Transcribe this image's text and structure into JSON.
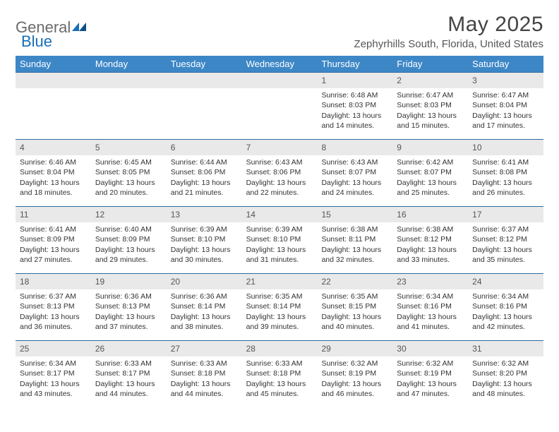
{
  "logo": {
    "general": "General",
    "blue": "Blue"
  },
  "title": "May 2025",
  "location": "Zephyrhills South, Florida, United States",
  "colors": {
    "header_bar": "#3d87c7",
    "row_border": "#2e6aa0",
    "daynum_bg": "#e9e9e9",
    "text": "#333333",
    "logo_gray": "#6a6a6a",
    "logo_blue": "#1a6fb5"
  },
  "dow": [
    "Sunday",
    "Monday",
    "Tuesday",
    "Wednesday",
    "Thursday",
    "Friday",
    "Saturday"
  ],
  "weeks": [
    [
      {
        "n": "",
        "sr": "",
        "ss": "",
        "dl": ""
      },
      {
        "n": "",
        "sr": "",
        "ss": "",
        "dl": ""
      },
      {
        "n": "",
        "sr": "",
        "ss": "",
        "dl": ""
      },
      {
        "n": "",
        "sr": "",
        "ss": "",
        "dl": ""
      },
      {
        "n": "1",
        "sr": "Sunrise: 6:48 AM",
        "ss": "Sunset: 8:03 PM",
        "dl": "Daylight: 13 hours and 14 minutes."
      },
      {
        "n": "2",
        "sr": "Sunrise: 6:47 AM",
        "ss": "Sunset: 8:03 PM",
        "dl": "Daylight: 13 hours and 15 minutes."
      },
      {
        "n": "3",
        "sr": "Sunrise: 6:47 AM",
        "ss": "Sunset: 8:04 PM",
        "dl": "Daylight: 13 hours and 17 minutes."
      }
    ],
    [
      {
        "n": "4",
        "sr": "Sunrise: 6:46 AM",
        "ss": "Sunset: 8:04 PM",
        "dl": "Daylight: 13 hours and 18 minutes."
      },
      {
        "n": "5",
        "sr": "Sunrise: 6:45 AM",
        "ss": "Sunset: 8:05 PM",
        "dl": "Daylight: 13 hours and 20 minutes."
      },
      {
        "n": "6",
        "sr": "Sunrise: 6:44 AM",
        "ss": "Sunset: 8:06 PM",
        "dl": "Daylight: 13 hours and 21 minutes."
      },
      {
        "n": "7",
        "sr": "Sunrise: 6:43 AM",
        "ss": "Sunset: 8:06 PM",
        "dl": "Daylight: 13 hours and 22 minutes."
      },
      {
        "n": "8",
        "sr": "Sunrise: 6:43 AM",
        "ss": "Sunset: 8:07 PM",
        "dl": "Daylight: 13 hours and 24 minutes."
      },
      {
        "n": "9",
        "sr": "Sunrise: 6:42 AM",
        "ss": "Sunset: 8:07 PM",
        "dl": "Daylight: 13 hours and 25 minutes."
      },
      {
        "n": "10",
        "sr": "Sunrise: 6:41 AM",
        "ss": "Sunset: 8:08 PM",
        "dl": "Daylight: 13 hours and 26 minutes."
      }
    ],
    [
      {
        "n": "11",
        "sr": "Sunrise: 6:41 AM",
        "ss": "Sunset: 8:09 PM",
        "dl": "Daylight: 13 hours and 27 minutes."
      },
      {
        "n": "12",
        "sr": "Sunrise: 6:40 AM",
        "ss": "Sunset: 8:09 PM",
        "dl": "Daylight: 13 hours and 29 minutes."
      },
      {
        "n": "13",
        "sr": "Sunrise: 6:39 AM",
        "ss": "Sunset: 8:10 PM",
        "dl": "Daylight: 13 hours and 30 minutes."
      },
      {
        "n": "14",
        "sr": "Sunrise: 6:39 AM",
        "ss": "Sunset: 8:10 PM",
        "dl": "Daylight: 13 hours and 31 minutes."
      },
      {
        "n": "15",
        "sr": "Sunrise: 6:38 AM",
        "ss": "Sunset: 8:11 PM",
        "dl": "Daylight: 13 hours and 32 minutes."
      },
      {
        "n": "16",
        "sr": "Sunrise: 6:38 AM",
        "ss": "Sunset: 8:12 PM",
        "dl": "Daylight: 13 hours and 33 minutes."
      },
      {
        "n": "17",
        "sr": "Sunrise: 6:37 AM",
        "ss": "Sunset: 8:12 PM",
        "dl": "Daylight: 13 hours and 35 minutes."
      }
    ],
    [
      {
        "n": "18",
        "sr": "Sunrise: 6:37 AM",
        "ss": "Sunset: 8:13 PM",
        "dl": "Daylight: 13 hours and 36 minutes."
      },
      {
        "n": "19",
        "sr": "Sunrise: 6:36 AM",
        "ss": "Sunset: 8:13 PM",
        "dl": "Daylight: 13 hours and 37 minutes."
      },
      {
        "n": "20",
        "sr": "Sunrise: 6:36 AM",
        "ss": "Sunset: 8:14 PM",
        "dl": "Daylight: 13 hours and 38 minutes."
      },
      {
        "n": "21",
        "sr": "Sunrise: 6:35 AM",
        "ss": "Sunset: 8:14 PM",
        "dl": "Daylight: 13 hours and 39 minutes."
      },
      {
        "n": "22",
        "sr": "Sunrise: 6:35 AM",
        "ss": "Sunset: 8:15 PM",
        "dl": "Daylight: 13 hours and 40 minutes."
      },
      {
        "n": "23",
        "sr": "Sunrise: 6:34 AM",
        "ss": "Sunset: 8:16 PM",
        "dl": "Daylight: 13 hours and 41 minutes."
      },
      {
        "n": "24",
        "sr": "Sunrise: 6:34 AM",
        "ss": "Sunset: 8:16 PM",
        "dl": "Daylight: 13 hours and 42 minutes."
      }
    ],
    [
      {
        "n": "25",
        "sr": "Sunrise: 6:34 AM",
        "ss": "Sunset: 8:17 PM",
        "dl": "Daylight: 13 hours and 43 minutes."
      },
      {
        "n": "26",
        "sr": "Sunrise: 6:33 AM",
        "ss": "Sunset: 8:17 PM",
        "dl": "Daylight: 13 hours and 44 minutes."
      },
      {
        "n": "27",
        "sr": "Sunrise: 6:33 AM",
        "ss": "Sunset: 8:18 PM",
        "dl": "Daylight: 13 hours and 44 minutes."
      },
      {
        "n": "28",
        "sr": "Sunrise: 6:33 AM",
        "ss": "Sunset: 8:18 PM",
        "dl": "Daylight: 13 hours and 45 minutes."
      },
      {
        "n": "29",
        "sr": "Sunrise: 6:32 AM",
        "ss": "Sunset: 8:19 PM",
        "dl": "Daylight: 13 hours and 46 minutes."
      },
      {
        "n": "30",
        "sr": "Sunrise: 6:32 AM",
        "ss": "Sunset: 8:19 PM",
        "dl": "Daylight: 13 hours and 47 minutes."
      },
      {
        "n": "31",
        "sr": "Sunrise: 6:32 AM",
        "ss": "Sunset: 8:20 PM",
        "dl": "Daylight: 13 hours and 48 minutes."
      }
    ]
  ]
}
